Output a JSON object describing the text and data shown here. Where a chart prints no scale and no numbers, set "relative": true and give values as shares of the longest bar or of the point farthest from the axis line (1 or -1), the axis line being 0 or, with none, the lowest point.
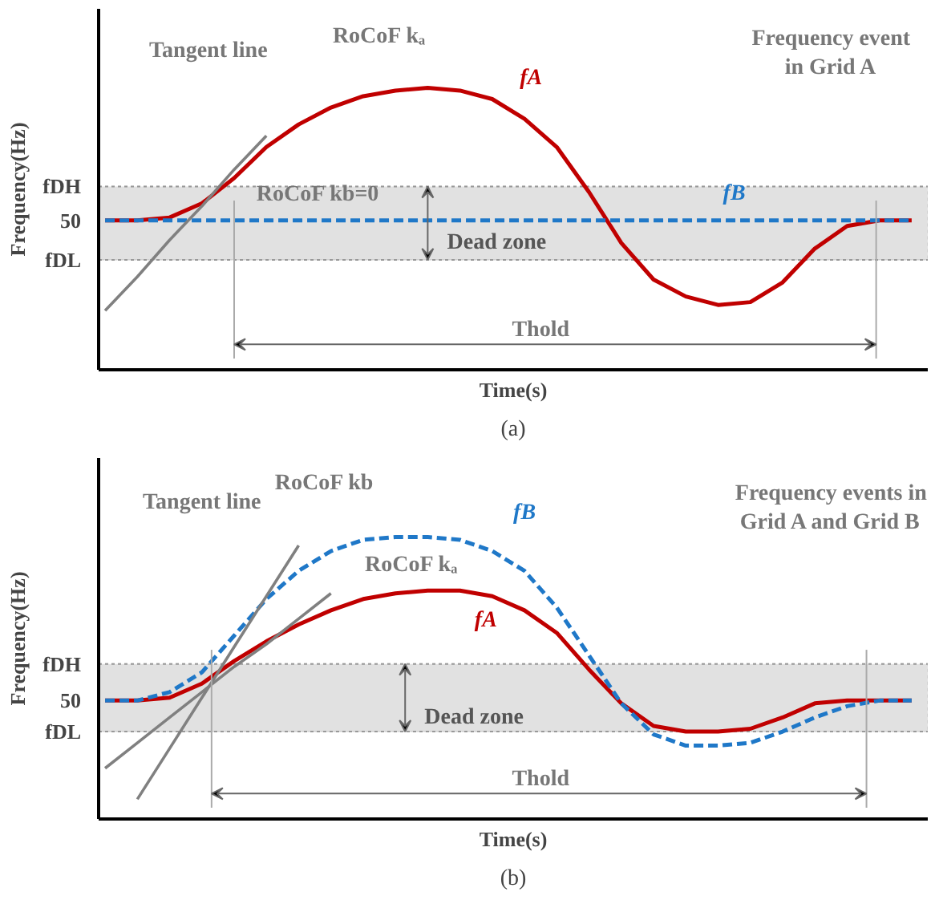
{
  "chart_data": [
    {
      "type": "line",
      "relative": true,
      "xlabel": "Time(s)",
      "ylabel": "Frequency(Hz)",
      "grid": false,
      "categories": [
        null,
        null,
        null,
        null,
        null,
        null,
        null,
        null,
        null,
        null,
        null,
        null,
        null,
        null,
        null,
        null,
        null,
        null,
        null,
        null,
        null,
        null,
        null,
        null,
        null,
        null
      ],
      "series": [
        {
          "name": "fA",
          "color": "#c00000",
          "values": [
            0.53,
            0.53,
            0.54,
            0.59,
            0.68,
            0.79,
            0.87,
            0.93,
            0.97,
            0.99,
            1,
            0.99,
            0.96,
            0.89,
            0.79,
            0.63,
            0.45,
            0.32,
            0.26,
            0.23,
            0.24,
            0.31,
            0.43,
            0.51,
            0.53,
            0.53
          ]
        },
        {
          "name": "fB",
          "color": "#1f78c8",
          "line_style": "dashed",
          "values": [
            0.53,
            0.53,
            0.53,
            0.53,
            0.53,
            0.53,
            0.53,
            0.53,
            0.53,
            0.53,
            0.53,
            0.53,
            0.53,
            0.53,
            0.53,
            0.53,
            0.53,
            0.53,
            0.53,
            0.53,
            0.53,
            0.53,
            0.53,
            0.53,
            0.53,
            0.53
          ]
        },
        {
          "color": "#808080",
          "values": [
            0.21,
            0.33,
            0.46,
            0.58,
            0.71,
            0.83,
            null,
            null,
            null,
            null,
            null,
            null,
            null,
            null,
            null,
            null,
            null,
            null,
            null,
            null,
            null,
            null,
            null,
            null,
            null,
            null
          ]
        }
      ],
      "ref_lines": [
        {
          "axis": "y",
          "value": 0.65,
          "label": "fDH",
          "color": "#999999",
          "line_style": "dotted"
        },
        {
          "axis": "y",
          "value": 0.39,
          "label": "fDL",
          "color": "#999999",
          "line_style": "dotted"
        }
      ],
      "bands": [
        {
          "axis": "y",
          "from": 0.39,
          "to": 0.65,
          "label": "Dead zone",
          "color": "#d9d9d9"
        }
      ],
      "annotations": [
        "50",
        "Tangent line",
        "RoCoF kₐ",
        "RoCoF kb=0",
        "Frequency event\nin Grid A",
        "Thold",
        "(a)"
      ]
    },
    {
      "type": "line",
      "relative": true,
      "xlabel": "Time(s)",
      "ylabel": "Frequency(Hz)",
      "grid": false,
      "categories": [
        null,
        null,
        null,
        null,
        null,
        null,
        null,
        null,
        null,
        null,
        null,
        null,
        null,
        null,
        null,
        null,
        null,
        null,
        null,
        null,
        null,
        null,
        null,
        null,
        null,
        null
      ],
      "series": [
        {
          "name": "fA",
          "color": "#c00000",
          "values": [
            0.42,
            0.42,
            0.43,
            0.48,
            0.56,
            0.63,
            0.69,
            0.74,
            0.78,
            0.8,
            0.81,
            0.81,
            0.79,
            0.74,
            0.66,
            0.53,
            0.41,
            0.33,
            0.31,
            0.31,
            0.32,
            0.36,
            0.41,
            0.42,
            0.42,
            0.42
          ]
        },
        {
          "name": "fB",
          "color": "#1f78c8",
          "line_style": "dashed",
          "values": [
            0.42,
            0.42,
            0.45,
            0.52,
            0.65,
            0.78,
            0.88,
            0.95,
            0.99,
            1,
            1,
            0.99,
            0.95,
            0.88,
            0.75,
            0.58,
            0.41,
            0.3,
            0.26,
            0.26,
            0.27,
            0.31,
            0.36,
            0.4,
            0.42,
            0.42
          ]
        },
        {
          "color": "#808080",
          "values": [
            0.18,
            0.27,
            0.36,
            0.45,
            0.54,
            0.62,
            0.71,
            0.8,
            null,
            null,
            null,
            null,
            null,
            null,
            null,
            null,
            null,
            null,
            null,
            null,
            null,
            null,
            null,
            null,
            null,
            null
          ]
        },
        {
          "color": "#808080",
          "values": [
            null,
            0.07,
            0.25,
            0.43,
            0.61,
            0.79,
            0.97,
            null,
            null,
            null,
            null,
            null,
            null,
            null,
            null,
            null,
            null,
            null,
            null,
            null,
            null,
            null,
            null,
            null,
            null,
            null
          ]
        }
      ],
      "ref_lines": [
        {
          "axis": "y",
          "value": 0.55,
          "label": "fDH",
          "color": "#999999",
          "line_style": "dotted"
        },
        {
          "axis": "y",
          "value": 0.31,
          "label": "fDL",
          "color": "#999999",
          "line_style": "dotted"
        }
      ],
      "bands": [
        {
          "axis": "y",
          "from": 0.31,
          "to": 0.55,
          "label": "Dead zone",
          "color": "#d9d9d9"
        }
      ],
      "annotations": [
        "50",
        "Tangent line",
        "RoCoF kb",
        "RoCoF kₐ",
        "Frequency events in\nGrid A and Grid B",
        "Thold",
        "(b)"
      ]
    }
  ]
}
